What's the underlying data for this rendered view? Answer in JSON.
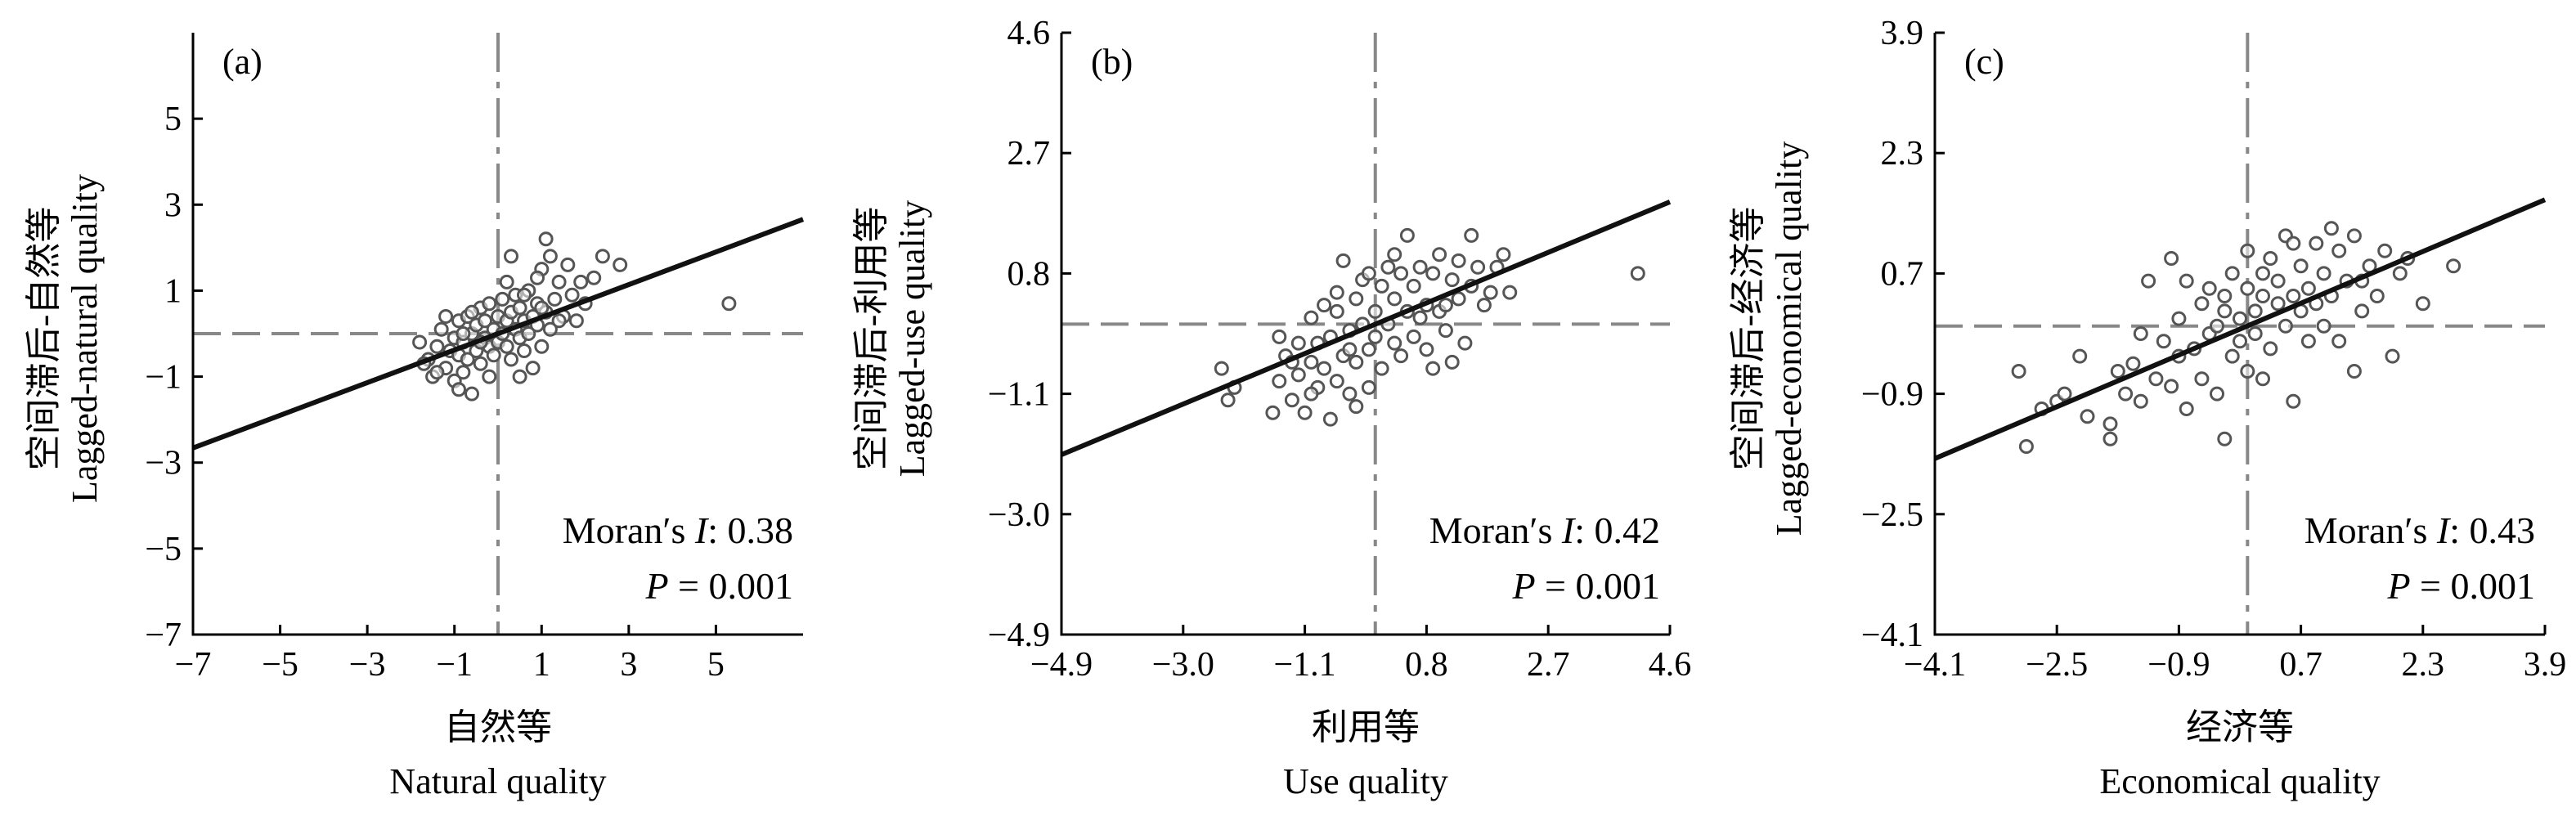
{
  "chart_data": [
    {
      "type": "scatter",
      "panel_label": "(a)",
      "xlabel_cn": "自然等",
      "xlabel_en": "Natural quality",
      "ylabel_cn": "空间滞后-自然等",
      "ylabel_en": "Lagged-natural quality",
      "xlim": [
        -7,
        7
      ],
      "ylim": [
        -7,
        7
      ],
      "xticks": [
        -7,
        -5,
        -3,
        -1,
        1,
        3,
        5
      ],
      "yticks": [
        -7,
        -5,
        -3,
        -1,
        1,
        3,
        5
      ],
      "x_tick_labels": [
        "−7",
        "−5",
        "−3",
        "−1",
        "1",
        "3",
        "5"
      ],
      "y_tick_labels": [
        "−7",
        "−5",
        "−3",
        "−1",
        "1",
        "3",
        "5"
      ],
      "ref_x": 0,
      "ref_y": 0,
      "fit_line": [
        [
          -7,
          -2.66
        ],
        [
          7,
          2.66
        ]
      ],
      "moran_label": "Moran′s ",
      "moran_symbol": "I",
      "moran_value": ": 0.38",
      "p_symbol": "P",
      "p_value": " = 0.001",
      "points": [
        [
          -1.8,
          -0.2
        ],
        [
          -1.6,
          -0.6
        ],
        [
          -1.5,
          -1.0
        ],
        [
          -1.4,
          -0.3
        ],
        [
          -1.3,
          0.1
        ],
        [
          -1.2,
          -0.8
        ],
        [
          -1.1,
          -0.4
        ],
        [
          -1.0,
          -0.1
        ],
        [
          -1.0,
          -1.1
        ],
        [
          -0.9,
          0.3
        ],
        [
          -0.9,
          -0.5
        ],
        [
          -0.8,
          -0.2
        ],
        [
          -0.8,
          -0.9
        ],
        [
          -0.7,
          0.4
        ],
        [
          -0.7,
          -0.6
        ],
        [
          -0.6,
          0.0
        ],
        [
          -0.6,
          -1.4
        ],
        [
          -0.5,
          0.2
        ],
        [
          -0.5,
          -0.4
        ],
        [
          -0.4,
          0.6
        ],
        [
          -0.4,
          -0.7
        ],
        [
          -0.3,
          -0.1
        ],
        [
          -0.3,
          0.3
        ],
        [
          -0.2,
          -0.3
        ],
        [
          -0.2,
          0.7
        ],
        [
          -0.1,
          0.1
        ],
        [
          -0.1,
          -0.5
        ],
        [
          0.0,
          0.4
        ],
        [
          0.0,
          -0.2
        ],
        [
          0.1,
          0.0
        ],
        [
          0.1,
          0.8
        ],
        [
          0.2,
          -0.3
        ],
        [
          0.2,
          0.3
        ],
        [
          0.3,
          0.5
        ],
        [
          0.3,
          -0.6
        ],
        [
          0.4,
          0.1
        ],
        [
          0.4,
          0.9
        ],
        [
          0.5,
          -0.1
        ],
        [
          0.5,
          0.6
        ],
        [
          0.6,
          0.3
        ],
        [
          0.6,
          -0.4
        ],
        [
          0.7,
          1.0
        ],
        [
          0.7,
          0.0
        ],
        [
          0.8,
          0.4
        ],
        [
          0.8,
          -0.8
        ],
        [
          0.9,
          0.7
        ],
        [
          0.9,
          0.2
        ],
        [
          1.0,
          1.5
        ],
        [
          1.0,
          -0.3
        ],
        [
          1.1,
          0.5
        ],
        [
          1.1,
          2.2
        ],
        [
          1.2,
          1.8
        ],
        [
          1.2,
          0.1
        ],
        [
          1.3,
          0.8
        ],
        [
          1.4,
          1.2
        ],
        [
          1.5,
          0.4
        ],
        [
          1.6,
          1.6
        ],
        [
          1.7,
          0.9
        ],
        [
          1.8,
          0.3
        ],
        [
          2.0,
          0.7
        ],
        [
          2.2,
          1.3
        ],
        [
          2.4,
          1.8
        ],
        [
          2.8,
          1.6
        ],
        [
          5.3,
          0.7
        ],
        [
          -1.7,
          -0.7
        ],
        [
          -1.2,
          0.4
        ],
        [
          -0.6,
          0.5
        ],
        [
          0.2,
          1.2
        ],
        [
          0.9,
          1.3
        ],
        [
          1.4,
          0.3
        ],
        [
          0.5,
          -1.0
        ],
        [
          -0.2,
          -1.0
        ],
        [
          -0.9,
          -1.3
        ],
        [
          0.3,
          1.8
        ],
        [
          1.9,
          1.2
        ],
        [
          -1.4,
          -0.9
        ],
        [
          -0.4,
          -0.2
        ],
        [
          0.6,
          0.9
        ],
        [
          1.0,
          0.6
        ],
        [
          -0.8,
          0.0
        ]
      ]
    },
    {
      "type": "scatter",
      "panel_label": "(b)",
      "xlabel_cn": "利用等",
      "xlabel_en": "Use quality",
      "ylabel_cn": "空间滞后-利用等",
      "ylabel_en": "Lagged-use quality",
      "xlim": [
        -4.9,
        4.6
      ],
      "ylim": [
        -4.9,
        4.6
      ],
      "xticks": [
        -4.9,
        -3.0,
        -1.1,
        0.8,
        2.7,
        4.6
      ],
      "yticks": [
        -4.9,
        -3.0,
        -1.1,
        0.8,
        2.7,
        4.6
      ],
      "x_tick_labels": [
        "−4.9",
        "−3.0",
        "−1.1",
        "0.8",
        "2.7",
        "4.6"
      ],
      "y_tick_labels": [
        "−4.9",
        "−3.0",
        "−1.1",
        "0.8",
        "2.7",
        "4.6"
      ],
      "ref_x": 0,
      "ref_y": 0,
      "fit_line": [
        [
          -4.9,
          -2.06
        ],
        [
          4.6,
          1.93
        ]
      ],
      "moran_label": "Moran′s ",
      "moran_symbol": "I",
      "moran_value": ": 0.42",
      "p_symbol": "P",
      "p_value": " = 0.001",
      "points": [
        [
          -2.4,
          -0.7
        ],
        [
          -2.3,
          -1.2
        ],
        [
          -2.2,
          -1.0
        ],
        [
          -1.6,
          -1.4
        ],
        [
          -1.5,
          -0.9
        ],
        [
          -1.4,
          -0.5
        ],
        [
          -1.3,
          -1.2
        ],
        [
          -1.2,
          -0.3
        ],
        [
          -1.2,
          -0.8
        ],
        [
          -1.1,
          -1.4
        ],
        [
          -1.0,
          -0.6
        ],
        [
          -1.0,
          0.1
        ],
        [
          -0.9,
          -1.0
        ],
        [
          -0.9,
          -0.3
        ],
        [
          -0.8,
          -0.7
        ],
        [
          -0.8,
          0.3
        ],
        [
          -0.7,
          -1.5
        ],
        [
          -0.7,
          -0.2
        ],
        [
          -0.6,
          -0.9
        ],
        [
          -0.6,
          0.2
        ],
        [
          -0.5,
          -0.5
        ],
        [
          -0.5,
          1.0
        ],
        [
          -0.4,
          -0.1
        ],
        [
          -0.4,
          -1.1
        ],
        [
          -0.3,
          0.4
        ],
        [
          -0.3,
          -0.6
        ],
        [
          -0.2,
          0.0
        ],
        [
          -0.2,
          0.7
        ],
        [
          -0.1,
          -0.4
        ],
        [
          -0.1,
          -1.0
        ],
        [
          0.0,
          0.2
        ],
        [
          0.0,
          -0.2
        ],
        [
          0.1,
          0.6
        ],
        [
          0.1,
          -0.7
        ],
        [
          0.2,
          0.0
        ],
        [
          0.2,
          0.9
        ],
        [
          0.3,
          -0.3
        ],
        [
          0.3,
          0.4
        ],
        [
          0.4,
          0.8
        ],
        [
          0.4,
          -0.5
        ],
        [
          0.5,
          0.2
        ],
        [
          0.5,
          1.4
        ],
        [
          0.6,
          0.6
        ],
        [
          0.6,
          -0.2
        ],
        [
          0.7,
          0.9
        ],
        [
          0.8,
          0.3
        ],
        [
          0.8,
          -0.4
        ],
        [
          0.9,
          0.8
        ],
        [
          1.0,
          0.2
        ],
        [
          1.0,
          1.1
        ],
        [
          1.1,
          -0.1
        ],
        [
          1.2,
          0.7
        ],
        [
          1.3,
          0.4
        ],
        [
          1.3,
          1.0
        ],
        [
          1.4,
          -0.3
        ],
        [
          1.5,
          0.6
        ],
        [
          1.5,
          1.4
        ],
        [
          1.6,
          0.9
        ],
        [
          1.7,
          0.3
        ],
        [
          1.8,
          0.5
        ],
        [
          1.9,
          0.9
        ],
        [
          2.0,
          1.1
        ],
        [
          2.1,
          0.5
        ],
        [
          4.1,
          0.8
        ],
        [
          -1.5,
          -0.2
        ],
        [
          -0.3,
          -1.3
        ],
        [
          0.9,
          -0.7
        ],
        [
          1.2,
          -0.6
        ],
        [
          -0.6,
          0.5
        ],
        [
          0.3,
          1.1
        ],
        [
          -1.0,
          -1.1
        ],
        [
          -0.1,
          0.8
        ],
        [
          0.7,
          0.1
        ],
        [
          1.1,
          0.3
        ],
        [
          -0.4,
          -0.4
        ],
        [
          -1.3,
          -0.6
        ]
      ]
    },
    {
      "type": "scatter",
      "panel_label": "(c)",
      "xlabel_cn": "经济等",
      "xlabel_en": "Economical quality",
      "ylabel_cn": "空间滞后-经济等",
      "ylabel_en": "Lagged-economical quality",
      "xlim": [
        -4.1,
        3.9
      ],
      "ylim": [
        -4.1,
        3.9
      ],
      "xticks": [
        -4.1,
        -2.5,
        -0.9,
        0.7,
        2.3,
        3.9
      ],
      "yticks": [
        -4.1,
        -2.5,
        -0.9,
        0.7,
        2.3,
        3.9
      ],
      "x_tick_labels": [
        "−4.1",
        "−2.5",
        "−0.9",
        "0.7",
        "2.3",
        "3.9"
      ],
      "y_tick_labels": [
        "−4.1",
        "−2.5",
        "−0.9",
        "0.7",
        "2.3",
        "3.9"
      ],
      "ref_x": 0,
      "ref_y": 0,
      "fit_line": [
        [
          -4.1,
          -1.76
        ],
        [
          3.9,
          1.68
        ]
      ],
      "moran_label": "Moran′s ",
      "moran_symbol": "I",
      "moran_value": ": 0.43",
      "p_symbol": "P",
      "p_value": " = 0.001",
      "points": [
        [
          -3.0,
          -0.6
        ],
        [
          -2.9,
          -1.6
        ],
        [
          -2.7,
          -1.1
        ],
        [
          -2.5,
          -1.0
        ],
        [
          -2.2,
          -0.4
        ],
        [
          -2.1,
          -1.2
        ],
        [
          -1.8,
          -1.3
        ],
        [
          -1.8,
          -1.5
        ],
        [
          -1.6,
          -0.9
        ],
        [
          -1.5,
          -0.5
        ],
        [
          -1.4,
          -0.1
        ],
        [
          -1.4,
          -1.0
        ],
        [
          -1.3,
          0.6
        ],
        [
          -1.2,
          -0.7
        ],
        [
          -1.1,
          -0.2
        ],
        [
          -1.0,
          0.9
        ],
        [
          -1.0,
          -0.8
        ],
        [
          -0.9,
          -0.4
        ],
        [
          -0.9,
          0.1
        ],
        [
          -0.8,
          -1.1
        ],
        [
          -0.7,
          -0.3
        ],
        [
          -0.6,
          0.3
        ],
        [
          -0.6,
          -0.7
        ],
        [
          -0.5,
          -0.1
        ],
        [
          -0.5,
          0.5
        ],
        [
          -0.4,
          -0.9
        ],
        [
          -0.4,
          0.0
        ],
        [
          -0.3,
          0.4
        ],
        [
          -0.3,
          -1.5
        ],
        [
          -0.2,
          -0.4
        ],
        [
          -0.2,
          0.7
        ],
        [
          -0.1,
          0.1
        ],
        [
          -0.1,
          -0.2
        ],
        [
          0.0,
          0.5
        ],
        [
          0.0,
          -0.6
        ],
        [
          0.0,
          1.0
        ],
        [
          0.1,
          0.2
        ],
        [
          0.1,
          -0.1
        ],
        [
          0.2,
          0.7
        ],
        [
          0.2,
          0.4
        ],
        [
          0.3,
          -0.3
        ],
        [
          0.3,
          0.9
        ],
        [
          0.4,
          0.3
        ],
        [
          0.4,
          0.6
        ],
        [
          0.5,
          0.0
        ],
        [
          0.5,
          1.2
        ],
        [
          0.6,
          0.4
        ],
        [
          0.6,
          -1.0
        ],
        [
          0.7,
          0.8
        ],
        [
          0.7,
          0.2
        ],
        [
          0.8,
          0.5
        ],
        [
          0.8,
          -0.2
        ],
        [
          0.9,
          1.1
        ],
        [
          0.9,
          0.3
        ],
        [
          1.0,
          0.7
        ],
        [
          1.0,
          0.0
        ],
        [
          1.1,
          0.4
        ],
        [
          1.2,
          1.0
        ],
        [
          1.2,
          -0.2
        ],
        [
          1.3,
          0.6
        ],
        [
          1.4,
          1.2
        ],
        [
          1.5,
          0.2
        ],
        [
          1.6,
          0.8
        ],
        [
          1.7,
          0.4
        ],
        [
          1.8,
          1.0
        ],
        [
          1.9,
          -0.4
        ],
        [
          2.0,
          0.7
        ],
        [
          2.1,
          0.9
        ],
        [
          2.3,
          0.3
        ],
        [
          2.7,
          0.8
        ],
        [
          -1.7,
          -0.6
        ],
        [
          -0.8,
          0.6
        ],
        [
          0.2,
          -0.7
        ],
        [
          1.4,
          -0.6
        ],
        [
          -2.4,
          -0.9
        ],
        [
          0.6,
          1.1
        ],
        [
          1.1,
          1.3
        ],
        [
          -0.3,
          0.2
        ],
        [
          1.5,
          0.6
        ]
      ]
    }
  ]
}
